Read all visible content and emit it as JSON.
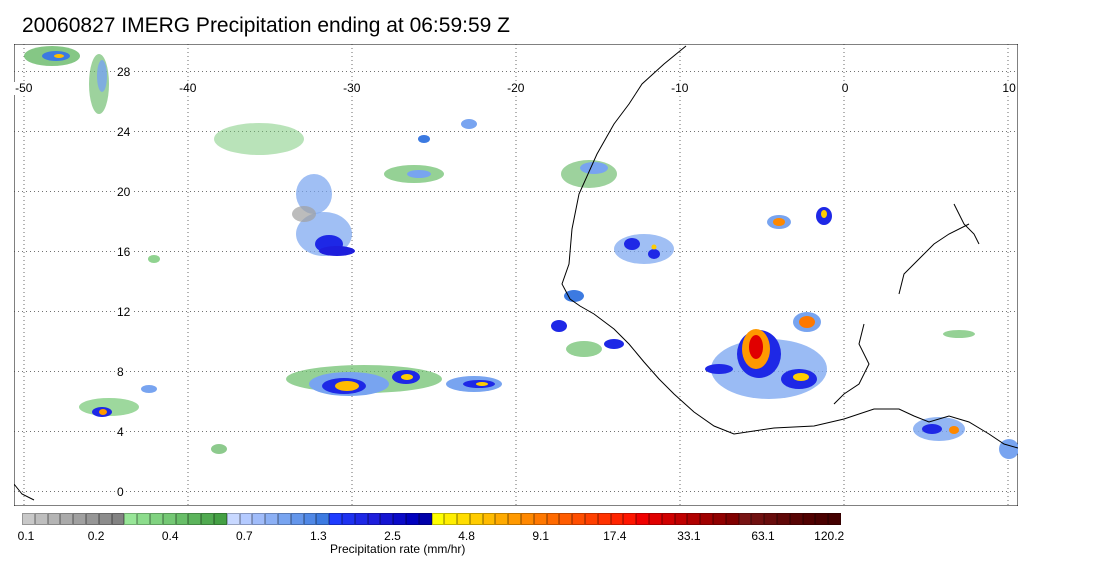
{
  "title": "20060827 IMERG Precipitation ending at 06:59:59 Z",
  "map": {
    "lon_range": [
      -50,
      10
    ],
    "lat_range": [
      -1,
      31
    ],
    "lon_ticks": [
      "-50",
      "-40",
      "-30",
      "-20",
      "-10",
      "0",
      "10"
    ],
    "lat_ticks": [
      "0",
      "4",
      "8",
      "12",
      "16",
      "20",
      "24",
      "28"
    ],
    "grid": "dotted"
  },
  "colorbar": {
    "title": "Precipitation rate (mm/hr)",
    "tick_labels": [
      "0.1",
      "0.2",
      "0.4",
      "0.7",
      "1.3",
      "2.5",
      "4.8",
      "9.1",
      "17.4",
      "33.1",
      "63.1",
      "120.2"
    ],
    "colors": [
      "#c8c8c8",
      "#bebebe",
      "#b4b4b4",
      "#aaaaaa",
      "#a0a0a0",
      "#969696",
      "#8c8c8c",
      "#828282",
      "#98e698",
      "#8cdc8c",
      "#80d280",
      "#74c874",
      "#68be68",
      "#5cb45c",
      "#50aa50",
      "#44a044",
      "#c8d8ff",
      "#b4caff",
      "#a0bcfa",
      "#8cb0f5",
      "#78a4f0",
      "#6496eb",
      "#5088e6",
      "#3c7ae1",
      "#1e3cff",
      "#1e32f0",
      "#1e28e6",
      "#1e1edc",
      "#1414d2",
      "#0a0ac8",
      "#0000be",
      "#0000aa",
      "#ffff00",
      "#ffee00",
      "#ffdd00",
      "#ffcc00",
      "#ffbb00",
      "#ffaa00",
      "#ff9900",
      "#ff8800",
      "#ff7800",
      "#ff6a00",
      "#ff5c00",
      "#ff4e00",
      "#ff4000",
      "#ff3200",
      "#ff2400",
      "#ff1600",
      "#f00000",
      "#e00000",
      "#d00000",
      "#c00000",
      "#b00000",
      "#a00000",
      "#900000",
      "#800000",
      "#781414",
      "#701010",
      "#680c0c",
      "#600808",
      "#580404",
      "#500000",
      "#4a0000",
      "#440000"
    ]
  }
}
